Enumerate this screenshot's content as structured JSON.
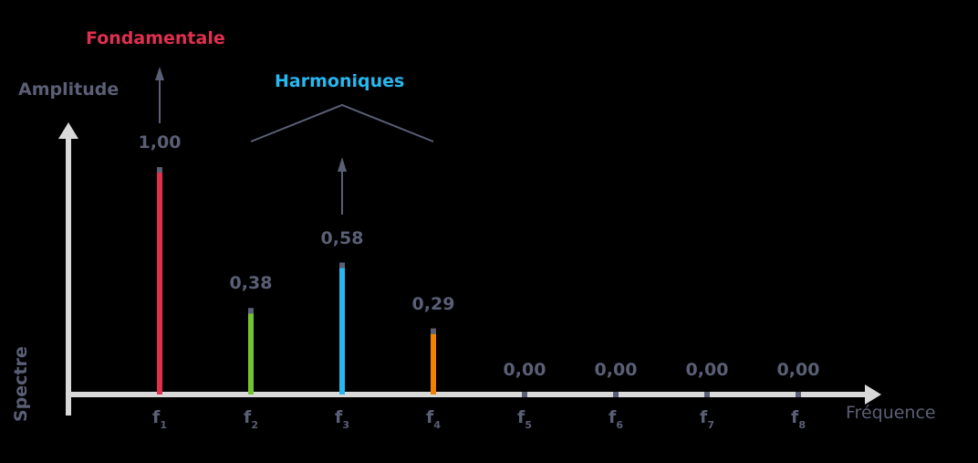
{
  "chart_data": {
    "type": "bar",
    "title": "Spectre",
    "xlabel": "Fréquence",
    "ylabel": "Amplitude",
    "categories": [
      "f1",
      "f2",
      "f3",
      "f4",
      "f5",
      "f6",
      "f7",
      "f8"
    ],
    "values": [
      1.0,
      0.38,
      0.58,
      0.29,
      0.0,
      0.0,
      0.0,
      0.0
    ],
    "value_labels": [
      "1,00",
      "0,38",
      "0,58",
      "0,29",
      "0,00",
      "0,00",
      "0,00",
      "0,00"
    ],
    "bar_colors": [
      "#e0304f",
      "#74c231",
      "#27b8f0",
      "#f08200",
      "#5a5f75",
      "#5a5f75",
      "#5a5f75",
      "#5a5f75"
    ],
    "annotations": [
      {
        "text": "Fondamentale",
        "color": "#e0304f",
        "target": "f1"
      },
      {
        "text": "Harmoniques",
        "color": "#27b8f0",
        "target": [
          "f2",
          "f3",
          "f4"
        ]
      }
    ],
    "ylim": [
      0,
      1
    ],
    "grid": false
  },
  "labels": {
    "amplitude": "Amplitude",
    "spectre": "Spectre",
    "frequence": "Fréquence",
    "fondamentale": "Fondamentale",
    "harmoniques": "Harmoniques"
  },
  "ticks": [
    {
      "base": "f",
      "sub": "1"
    },
    {
      "base": "f",
      "sub": "2"
    },
    {
      "base": "f",
      "sub": "3"
    },
    {
      "base": "f",
      "sub": "4"
    },
    {
      "base": "f",
      "sub": "5"
    },
    {
      "base": "f",
      "sub": "6"
    },
    {
      "base": "f",
      "sub": "7"
    },
    {
      "base": "f",
      "sub": "8"
    }
  ],
  "colors": {
    "axis": "#d9d9d9",
    "text": "#5a5f75",
    "cap": "#5a5f75"
  }
}
